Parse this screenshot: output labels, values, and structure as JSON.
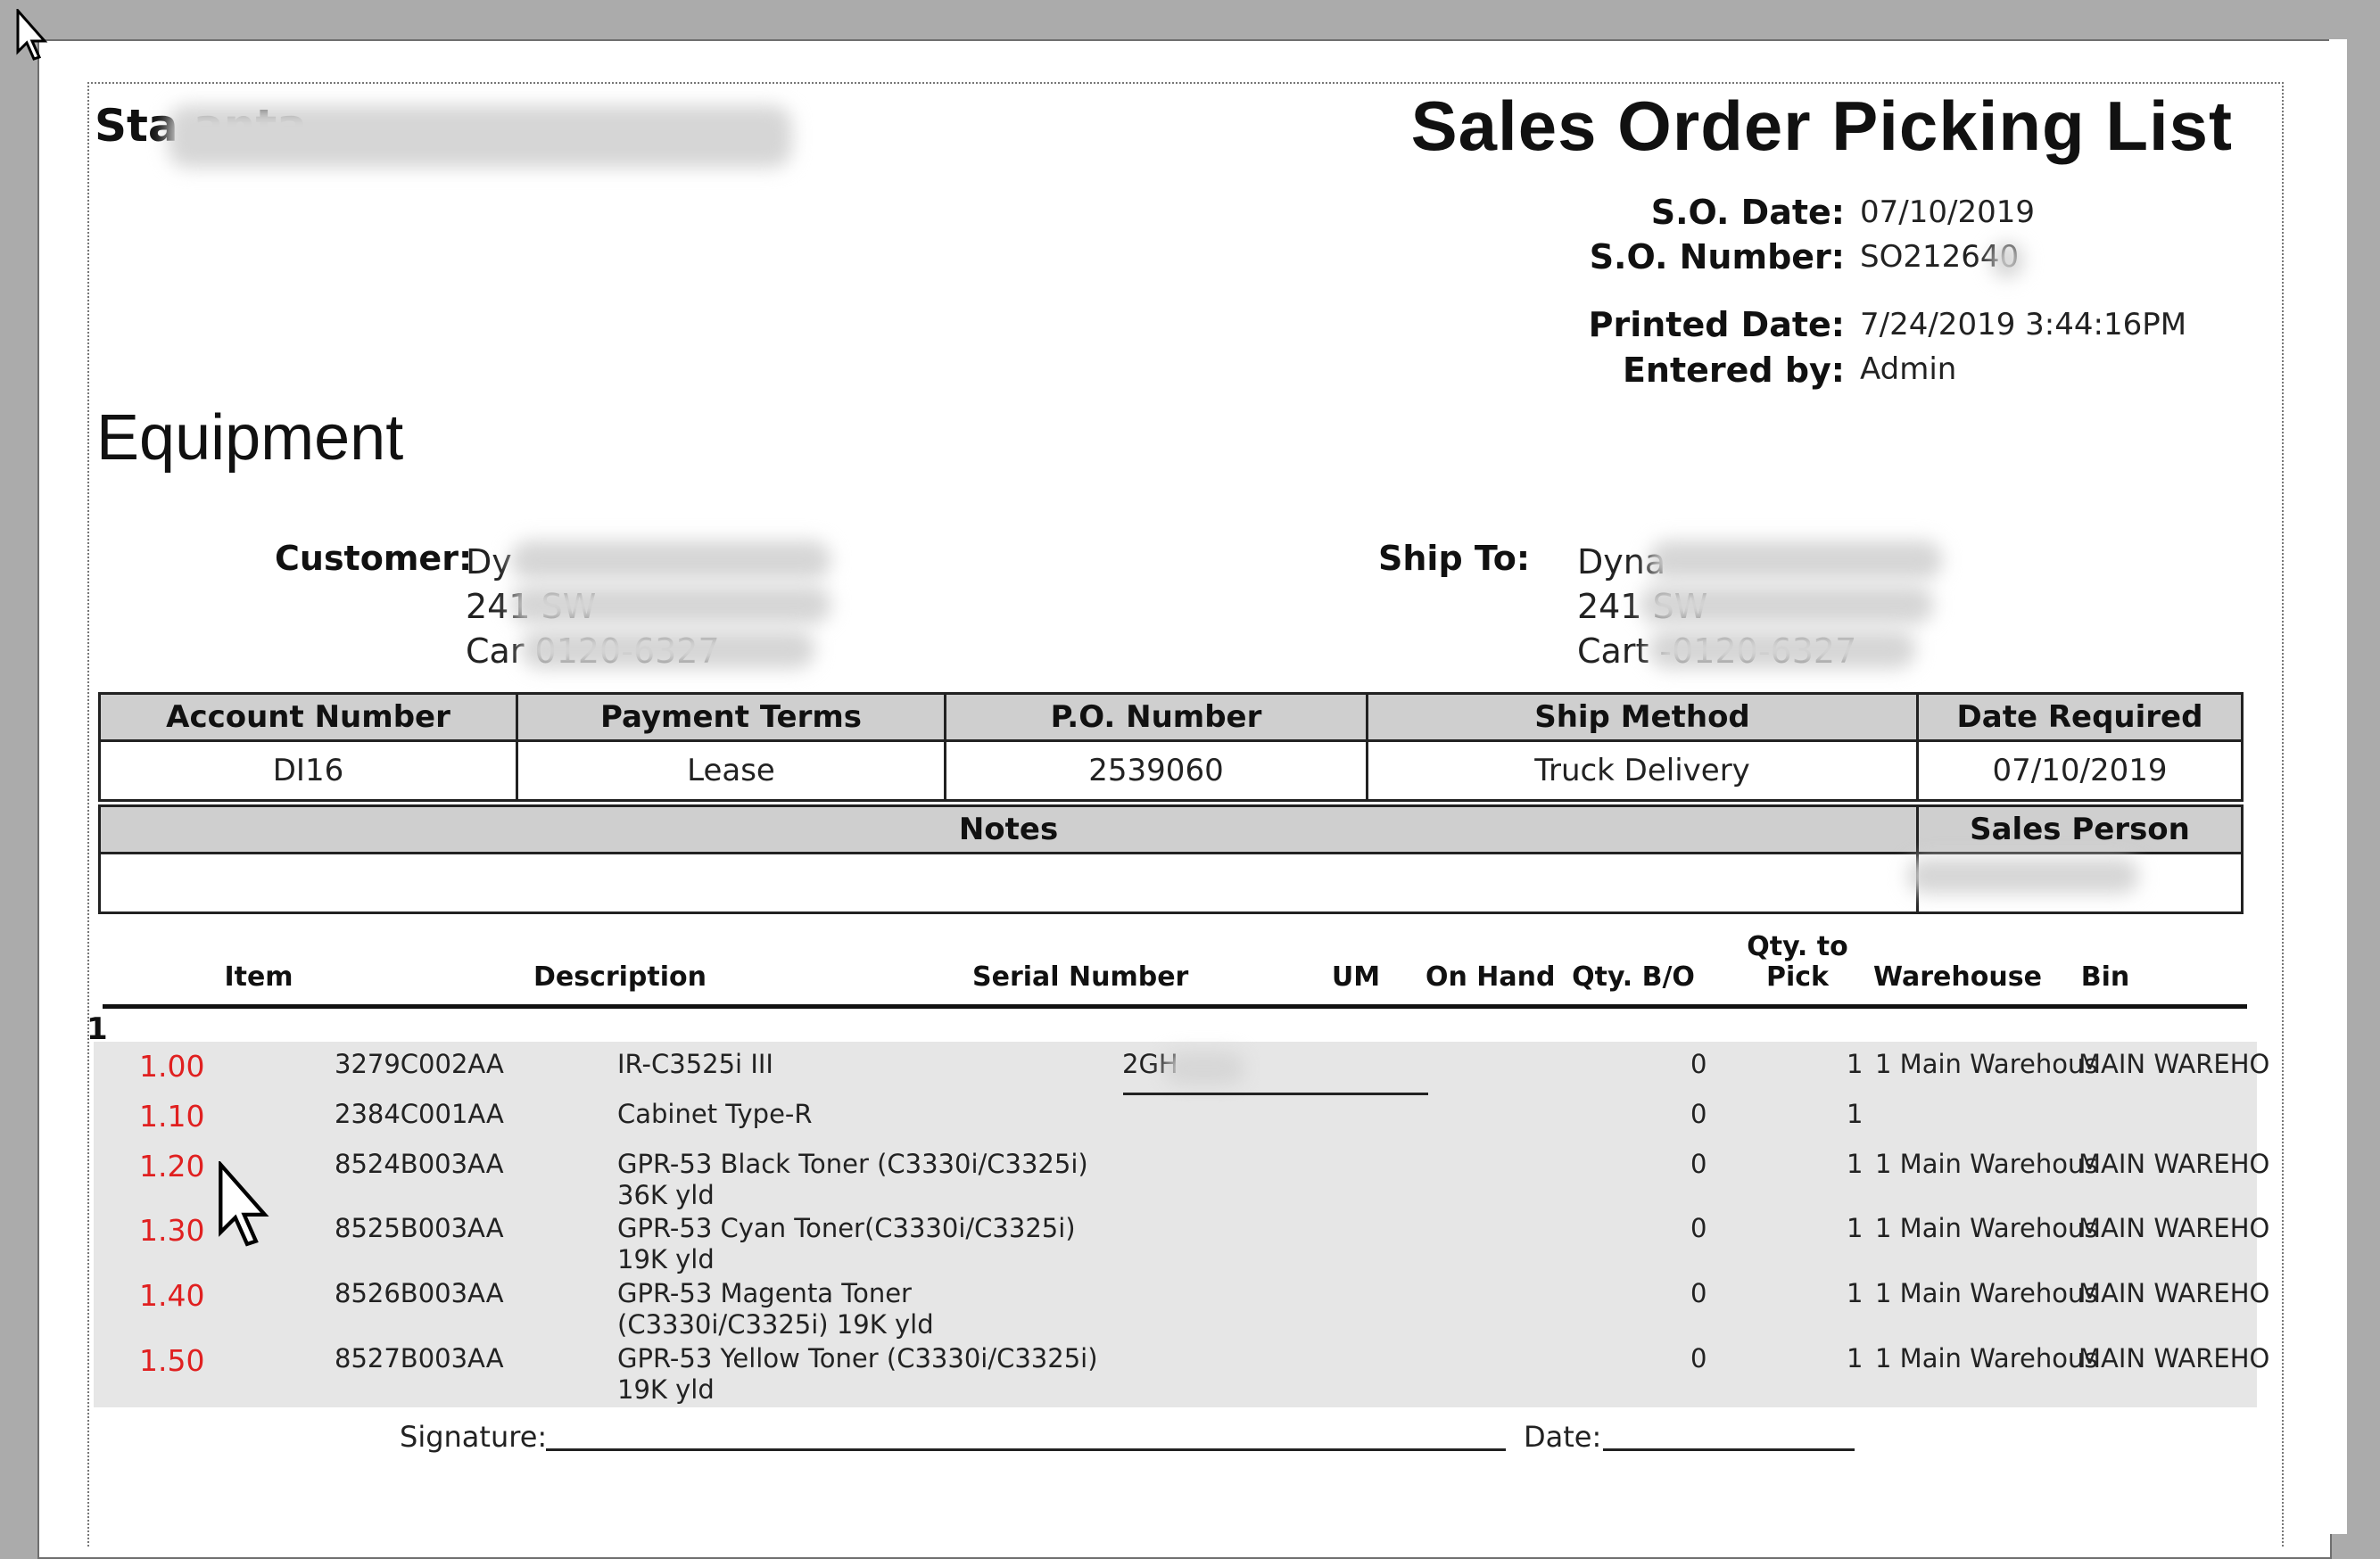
{
  "report": {
    "company": "Sta           anta",
    "title": "Sales Order Picking List",
    "section": "Equipment",
    "meta": [
      {
        "label": "S.O. Date:",
        "value": "07/10/2019"
      },
      {
        "label": "S.O. Number:",
        "value": "SO212640"
      },
      {
        "label": "Printed Date:",
        "value": "7/24/2019  3:44:16PM"
      },
      {
        "label": "Entered by:",
        "value": "Admin"
      }
    ]
  },
  "customer": {
    "label": "Customer:",
    "lines": [
      "Dy",
      "241                      SW",
      "Car                    0120-6327"
    ]
  },
  "ship_to": {
    "label": "Ship To:",
    "lines": [
      "Dyna",
      "241                      SW",
      "Cart                   -0120-6327"
    ]
  },
  "info": {
    "headers": [
      "Account Number",
      "Payment Terms",
      "P.O. Number",
      "Ship Method",
      "Date Required"
    ],
    "values": [
      "DI16",
      "Lease",
      "2539060",
      "Truck Delivery",
      "07/10/2019"
    ],
    "notes_label": "Notes",
    "sales_person_label": "Sales Person"
  },
  "lines": {
    "headers": {
      "item": "Item",
      "description": "Description",
      "serial": "Serial Number",
      "um": "UM",
      "on_hand": "On Hand",
      "qty_bo": "Qty. B/O",
      "qty_to_pick_1": "Qty. to",
      "qty_to_pick_2": "Pick",
      "warehouse": "Warehouse",
      "bin": "Bin"
    },
    "group": "1",
    "rows": [
      {
        "line": "1.00",
        "item": "3279C002AA",
        "desc1": "IR-C3525i III",
        "desc2": "",
        "serial": "2GH",
        "bo": "0",
        "pick": "1",
        "warehouse": "1 Main Warehous",
        "bin": "MAIN WAREHO"
      },
      {
        "line": "1.10",
        "item": "2384C001AA",
        "desc1": "Cabinet  Type-R",
        "desc2": "",
        "serial": "",
        "bo": "0",
        "pick": "1",
        "warehouse": "",
        "bin": ""
      },
      {
        "line": "1.20",
        "item": "8524B003AA",
        "desc1": "GPR-53 Black Toner (C3330i/C3325i)",
        "desc2": "36K yld",
        "serial": "",
        "bo": "0",
        "pick": "1",
        "warehouse": "1 Main Warehous",
        "bin": "MAIN WAREHO"
      },
      {
        "line": "1.30",
        "item": "8525B003AA",
        "desc1": "GPR-53 Cyan Toner(C3330i/C3325i)",
        "desc2": "19K yld",
        "serial": "",
        "bo": "0",
        "pick": "1",
        "warehouse": "1 Main Warehous",
        "bin": "MAIN WAREHO"
      },
      {
        "line": "1.40",
        "item": "8526B003AA",
        "desc1": "GPR-53 Magenta Toner",
        "desc2": "(C3330i/C3325i) 19K yld",
        "serial": "",
        "bo": "0",
        "pick": "1",
        "warehouse": "1 Main Warehous",
        "bin": "MAIN WAREHO"
      },
      {
        "line": "1.50",
        "item": "8527B003AA",
        "desc1": "GPR-53 Yellow Toner (C3330i/C3325i)",
        "desc2": "19K yld",
        "serial": "",
        "bo": "0",
        "pick": "1",
        "warehouse": "1 Main Warehous",
        "bin": "MAIN WAREHO"
      }
    ]
  },
  "signature": {
    "sig_label": "Signature:",
    "date_label": "Date:"
  },
  "colors": {
    "line_number": "#e02020",
    "header_fill": "#cfcfcf",
    "row_fill": "#e6e6e6"
  }
}
